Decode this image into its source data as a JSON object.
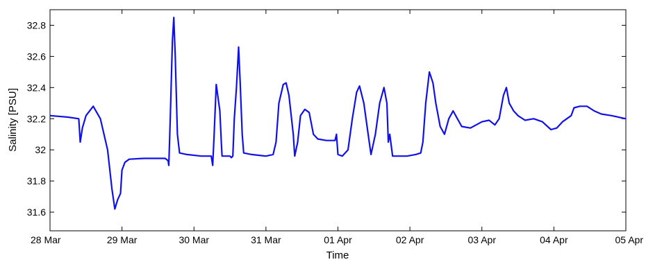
{
  "chart_data": {
    "type": "line",
    "title": "",
    "xlabel": "Time",
    "ylabel": "Salinity [PSU]",
    "x_tick_labels": [
      "28 Mar",
      "29 Mar",
      "30 Mar",
      "31 Mar",
      "01 Apr",
      "02 Apr",
      "03 Apr",
      "04 Apr",
      "05 Apr"
    ],
    "y_tick_labels": [
      "31.6",
      "31.8",
      "32",
      "32.2",
      "32.4",
      "32.6",
      "32.8"
    ],
    "y_ticks": [
      31.6,
      31.8,
      32.0,
      32.2,
      32.4,
      32.6,
      32.8
    ],
    "xlim": [
      "28 Mar 00:00",
      "05 Apr 00:00"
    ],
    "ylim": [
      31.48,
      32.9
    ],
    "grid": false,
    "series": [
      {
        "color": "#1010e8",
        "points": [
          [
            "28 Mar 00:00",
            32.22
          ],
          [
            "28 Mar 06:00",
            32.21
          ],
          [
            "28 Mar 09:36",
            32.2
          ],
          [
            "28 Mar 10:05",
            32.05
          ],
          [
            "28 Mar 10:48",
            32.14
          ],
          [
            "28 Mar 12:00",
            32.22
          ],
          [
            "28 Mar 14:24",
            32.28
          ],
          [
            "28 Mar 16:48",
            32.2
          ],
          [
            "28 Mar 19:12",
            32.0
          ],
          [
            "28 Mar 20:38",
            31.75
          ],
          [
            "28 Mar 21:36",
            31.62
          ],
          [
            "28 Mar 22:34",
            31.68
          ],
          [
            "28 Mar 23:31",
            31.72
          ],
          [
            "29 Mar 00:00",
            31.87
          ],
          [
            "29 Mar 00:58",
            31.92
          ],
          [
            "29 Mar 02:24",
            31.94
          ],
          [
            "29 Mar 07:12",
            31.945
          ],
          [
            "29 Mar 14:24",
            31.945
          ],
          [
            "29 Mar 15:22",
            31.93
          ],
          [
            "29 Mar 15:36",
            31.9
          ],
          [
            "29 Mar 16:05",
            32.2
          ],
          [
            "29 Mar 16:48",
            32.7
          ],
          [
            "29 Mar 17:17",
            32.85
          ],
          [
            "29 Mar 17:46",
            32.6
          ],
          [
            "29 Mar 18:29",
            32.1
          ],
          [
            "29 Mar 19:12",
            31.98
          ],
          [
            "29 Mar 21:36",
            31.97
          ],
          [
            "30 Mar 02:24",
            31.96
          ],
          [
            "30 Mar 05:46",
            31.96
          ],
          [
            "30 Mar 06:14",
            31.9
          ],
          [
            "30 Mar 06:43",
            32.1
          ],
          [
            "30 Mar 07:26",
            32.42
          ],
          [
            "30 Mar 08:38",
            32.25
          ],
          [
            "30 Mar 09:07",
            32.05
          ],
          [
            "30 Mar 09:22",
            31.96
          ],
          [
            "30 Mar 12:00",
            31.96
          ],
          [
            "30 Mar 12:29",
            31.95
          ],
          [
            "30 Mar 12:58",
            31.96
          ],
          [
            "30 Mar 13:26",
            32.2
          ],
          [
            "30 Mar 14:10",
            32.4
          ],
          [
            "30 Mar 14:53",
            32.66
          ],
          [
            "30 Mar 15:22",
            32.45
          ],
          [
            "30 Mar 16:05",
            32.1
          ],
          [
            "30 Mar 16:34",
            31.98
          ],
          [
            "30 Mar 19:12",
            31.97
          ],
          [
            "31 Mar 00:00",
            31.96
          ],
          [
            "31 Mar 02:24",
            31.97
          ],
          [
            "31 Mar 03:22",
            32.05
          ],
          [
            "31 Mar 04:19",
            32.3
          ],
          [
            "31 Mar 05:46",
            32.42
          ],
          [
            "31 Mar 06:43",
            32.43
          ],
          [
            "31 Mar 07:41",
            32.35
          ],
          [
            "31 Mar 09:07",
            32.1
          ],
          [
            "31 Mar 09:36",
            31.96
          ],
          [
            "31 Mar 10:34",
            32.05
          ],
          [
            "31 Mar 11:31",
            32.22
          ],
          [
            "31 Mar 12:58",
            32.26
          ],
          [
            "31 Mar 14:24",
            32.24
          ],
          [
            "31 Mar 15:50",
            32.1
          ],
          [
            "31 Mar 17:17",
            32.07
          ],
          [
            "31 Mar 20:10",
            32.06
          ],
          [
            "31 Mar 23:02",
            32.06
          ],
          [
            "31 Mar 23:31",
            32.1
          ],
          [
            "01 Apr 00:00",
            31.97
          ],
          [
            "01 Apr 01:26",
            31.96
          ],
          [
            "01 Apr 03:22",
            32.0
          ],
          [
            "01 Apr 04:48",
            32.2
          ],
          [
            "01 Apr 06:14",
            32.37
          ],
          [
            "01 Apr 07:12",
            32.41
          ],
          [
            "01 Apr 08:38",
            32.3
          ],
          [
            "01 Apr 10:05",
            32.1
          ],
          [
            "01 Apr 11:02",
            31.97
          ],
          [
            "01 Apr 12:29",
            32.1
          ],
          [
            "01 Apr 13:55",
            32.3
          ],
          [
            "01 Apr 15:22",
            32.4
          ],
          [
            "01 Apr 16:19",
            32.3
          ],
          [
            "01 Apr 16:48",
            32.05
          ],
          [
            "01 Apr 17:17",
            32.1
          ],
          [
            "01 Apr 18:14",
            31.96
          ],
          [
            "01 Apr 20:10",
            31.96
          ],
          [
            "01 Apr 23:02",
            31.96
          ],
          [
            "02 Apr 01:55",
            31.97
          ],
          [
            "02 Apr 03:36",
            31.98
          ],
          [
            "02 Apr 04:19",
            32.05
          ],
          [
            "02 Apr 05:17",
            32.3
          ],
          [
            "02 Apr 06:29",
            32.5
          ],
          [
            "02 Apr 07:41",
            32.43
          ],
          [
            "02 Apr 08:38",
            32.3
          ],
          [
            "02 Apr 10:05",
            32.15
          ],
          [
            "02 Apr 11:31",
            32.1
          ],
          [
            "02 Apr 12:58",
            32.2
          ],
          [
            "02 Apr 14:24",
            32.25
          ],
          [
            "02 Apr 15:50",
            32.2
          ],
          [
            "02 Apr 17:17",
            32.15
          ],
          [
            "02 Apr 20:10",
            32.14
          ],
          [
            "03 Apr 00:00",
            32.18
          ],
          [
            "03 Apr 02:24",
            32.19
          ],
          [
            "03 Apr 04:19",
            32.16
          ],
          [
            "03 Apr 05:46",
            32.2
          ],
          [
            "03 Apr 07:12",
            32.35
          ],
          [
            "03 Apr 08:10",
            32.4
          ],
          [
            "03 Apr 09:07",
            32.3
          ],
          [
            "03 Apr 10:34",
            32.25
          ],
          [
            "03 Apr 12:00",
            32.22
          ],
          [
            "03 Apr 14:24",
            32.19
          ],
          [
            "03 Apr 17:17",
            32.2
          ],
          [
            "03 Apr 20:10",
            32.18
          ],
          [
            "03 Apr 23:02",
            32.13
          ],
          [
            "04 Apr 00:58",
            32.14
          ],
          [
            "04 Apr 02:53",
            32.18
          ],
          [
            "04 Apr 05:46",
            32.22
          ],
          [
            "04 Apr 06:43",
            32.27
          ],
          [
            "04 Apr 08:38",
            32.28
          ],
          [
            "04 Apr 11:02",
            32.28
          ],
          [
            "04 Apr 13:26",
            32.25
          ],
          [
            "04 Apr 15:50",
            32.23
          ],
          [
            "04 Apr 19:12",
            32.22
          ],
          [
            "05 Apr 00:00",
            32.2
          ]
        ]
      }
    ]
  }
}
